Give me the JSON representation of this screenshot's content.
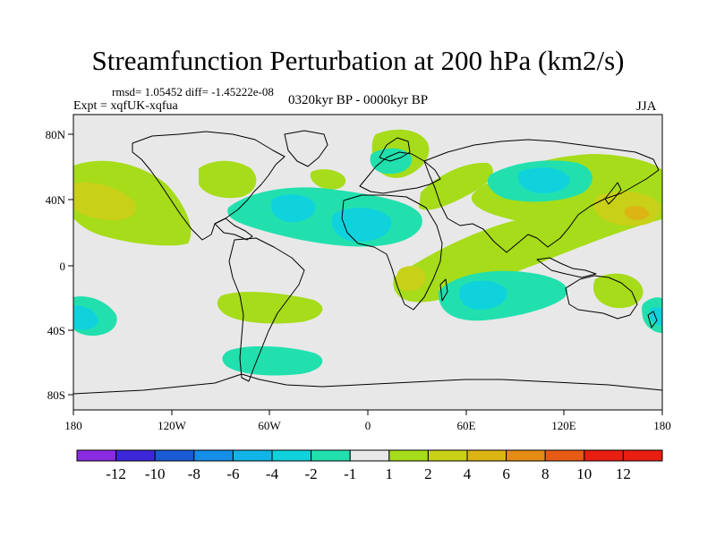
{
  "title": "Streamfunction Perturbation at 200 hPa (km2/s)",
  "stats": "rmsd= 1.05452 diff= -1.45222e-08",
  "expt": "Expt = xqfUK-xqfua",
  "period": "0320kyr BP - 0000kyr BP",
  "season": "JJA",
  "lat_labels": [
    "80N",
    "40N",
    "0",
    "40S",
    "80S"
  ],
  "lon_labels": [
    "180",
    "120W",
    "60W",
    "0",
    "60E",
    "120E",
    "180"
  ],
  "colorbar": {
    "labels": [
      "-12",
      "-10",
      "-8",
      "-6",
      "-4",
      "-2",
      "-1",
      "1",
      "2",
      "4",
      "6",
      "8",
      "10",
      "12"
    ],
    "colors": [
      "#8a2be2",
      "#3c28d8",
      "#1a5ad6",
      "#148ee8",
      "#11b4e6",
      "#10d2dc",
      "#22e0ae",
      "#e8e8e8",
      "#a6dc1a",
      "#c8d018",
      "#dcb414",
      "#e48c14",
      "#e85a14",
      "#e81e10"
    ]
  },
  "colors": {
    "background": "#e8e8e8",
    "neg_weak": "#22e0ae",
    "neg_mid": "#10d2dc",
    "pos_weak": "#a6dc1a",
    "pos_mid": "#c8d018",
    "pos_strong": "#dcb414"
  }
}
